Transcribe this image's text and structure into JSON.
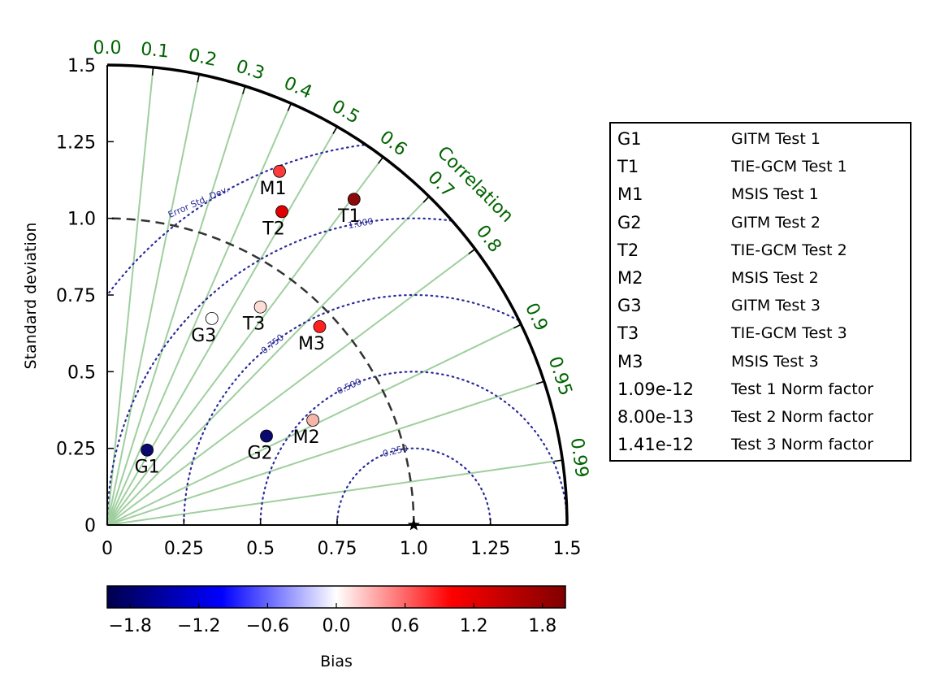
{
  "chart_data": {
    "type": "taylor-diagram",
    "ylabel": "Standard deviation",
    "correlation_label": "Correlation",
    "rmse_label": "Error Std. Dev.",
    "std_ticks": [
      "0",
      "0.25",
      "0.5",
      "0.75",
      "1.0",
      "1.25",
      "1.5"
    ],
    "std_tick_values": [
      0,
      0.25,
      0.5,
      0.75,
      1.0,
      1.25,
      1.5
    ],
    "std_max": 1.5,
    "reference_std": 1.0,
    "correlation_ticks": [
      "0.0",
      "0.1",
      "0.2",
      "0.3",
      "0.4",
      "0.5",
      "0.6",
      "0.7",
      "0.8",
      "0.9",
      "0.95",
      "0.99"
    ],
    "correlation_tick_values": [
      0.0,
      0.1,
      0.2,
      0.3,
      0.4,
      0.5,
      0.6,
      0.7,
      0.8,
      0.9,
      0.95,
      0.99
    ],
    "rmse_contours": [
      0.25,
      0.5,
      0.75,
      1.0,
      1.25
    ],
    "rmse_labels": [
      "0.250",
      "0.500",
      "0.750",
      "1.000"
    ],
    "points": [
      {
        "label": "G1",
        "std": 0.277,
        "corr": 0.47,
        "bias": -1.9,
        "color": "#0a0a6e"
      },
      {
        "label": "T1",
        "std": 1.333,
        "corr": 0.604,
        "bias": 1.8,
        "color": "#8b0a0a"
      },
      {
        "label": "M1",
        "std": 1.283,
        "corr": 0.438,
        "bias": 0.9,
        "color": "#ff3a3a"
      },
      {
        "label": "G2",
        "std": 0.595,
        "corr": 0.873,
        "bias": -1.9,
        "color": "#0a0a6e"
      },
      {
        "label": "T2",
        "std": 1.17,
        "corr": 0.487,
        "bias": 1.3,
        "color": "#e00000"
      },
      {
        "label": "M2",
        "std": 0.753,
        "corr": 0.891,
        "bias": 0.3,
        "color": "#f5b5aa"
      },
      {
        "label": "G3",
        "std": 0.755,
        "corr": 0.452,
        "bias": 0.0,
        "color": "#ffffff"
      },
      {
        "label": "T3",
        "std": 0.869,
        "corr": 0.575,
        "bias": 0.1,
        "color": "#fbdcd6"
      },
      {
        "label": "M3",
        "std": 0.948,
        "corr": 0.731,
        "bias": 1.3,
        "color": "#ff2020"
      }
    ],
    "colorbar": {
      "label": "Bias",
      "min": -2.0,
      "max": 2.0,
      "ticks": [
        "−1.8",
        "−1.2",
        "−0.6",
        "0.0",
        "0.6",
        "1.2",
        "1.8"
      ],
      "tick_values": [
        -1.8,
        -1.2,
        -0.6,
        0.0,
        0.6,
        1.2,
        1.8
      ],
      "colormap": "seismic"
    },
    "colors": {
      "correlation": "#006400",
      "radial_lines": "#9fcf9f",
      "rmse_contours": "#2b2b9a",
      "reference_arc": "#333333"
    }
  },
  "legend": {
    "items": [
      {
        "code": "G1",
        "desc": "GITM Test 1"
      },
      {
        "code": "T1",
        "desc": "TIE-GCM Test 1"
      },
      {
        "code": "M1",
        "desc": "MSIS Test 1"
      },
      {
        "code": "G2",
        "desc": "GITM Test 2"
      },
      {
        "code": "T2",
        "desc": "TIE-GCM Test 2"
      },
      {
        "code": "M2",
        "desc": "MSIS Test 2"
      },
      {
        "code": "G3",
        "desc": "GITM Test 3"
      },
      {
        "code": "T3",
        "desc": "TIE-GCM Test 3"
      },
      {
        "code": "M3",
        "desc": "MSIS Test 3"
      },
      {
        "code": "1.09e-12",
        "desc": "Test 1 Norm factor"
      },
      {
        "code": "8.00e-13",
        "desc": "Test 2 Norm factor"
      },
      {
        "code": "1.41e-12",
        "desc": "Test 3 Norm factor"
      }
    ]
  }
}
